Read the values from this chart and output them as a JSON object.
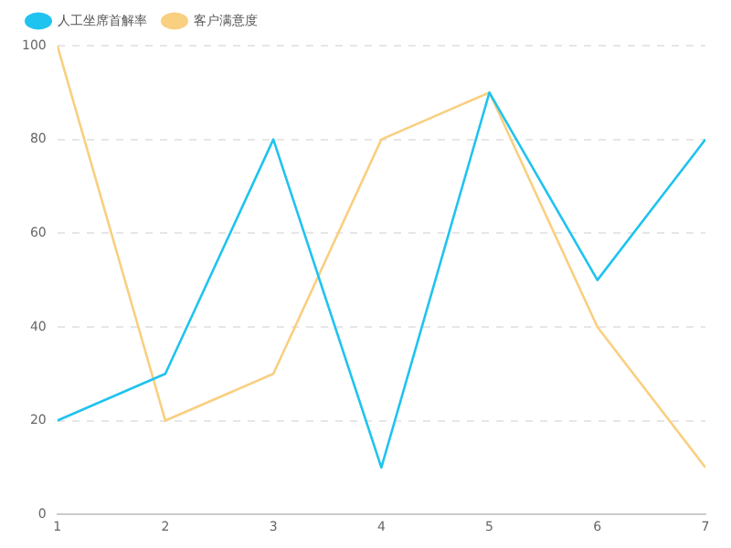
{
  "chart_data": {
    "type": "line",
    "x": [
      1,
      2,
      3,
      4,
      5,
      6,
      7
    ],
    "xlim": [
      1,
      7
    ],
    "xticks": [
      1,
      2,
      3,
      4,
      5,
      6,
      7
    ],
    "ylim": [
      0,
      100
    ],
    "yticks": [
      0,
      20,
      40,
      60,
      80,
      100
    ],
    "grid": "y",
    "legend": "top left",
    "marker": "none",
    "line_style": "solid",
    "series": [
      {
        "name": "人工坐席首解率",
        "color": "#1fc3ef",
        "values": [
          20,
          30,
          80,
          10,
          90,
          50,
          80
        ]
      },
      {
        "name": "客户满意度",
        "color": "#f9cf80",
        "values": [
          100,
          20,
          30,
          80,
          90,
          40,
          10
        ]
      }
    ]
  }
}
